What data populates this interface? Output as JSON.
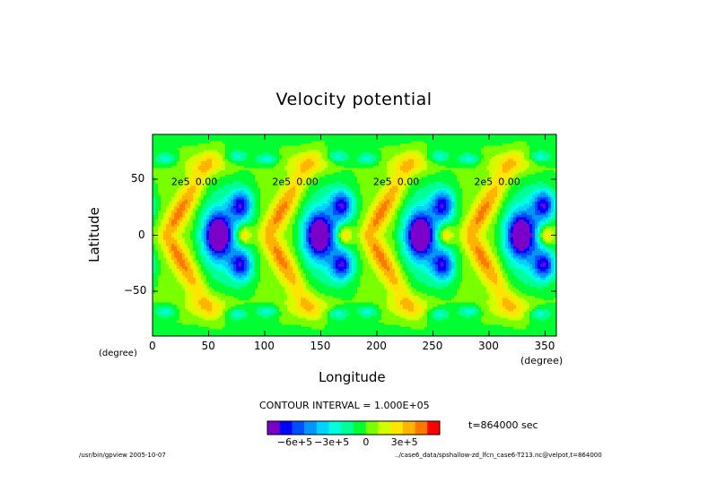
{
  "chart_data": {
    "type": "heatmap",
    "title": "Velocity potential",
    "xlabel": "Longitude",
    "ylabel": "Latitude",
    "x_unit_left": "(degree)",
    "x_unit_right": "(degree)",
    "xlim": [
      0,
      360
    ],
    "ylim": [
      -90,
      90
    ],
    "x_ticks": [
      0,
      50,
      100,
      150,
      200,
      250,
      300,
      350
    ],
    "y_ticks": [
      50,
      0,
      -50
    ],
    "x_tick_labels": [
      "0",
      "50",
      "100",
      "150",
      "200",
      "250",
      "300",
      "350"
    ],
    "y_tick_labels": [
      "50",
      "0",
      "−50"
    ],
    "contour_labels": [
      "2e5",
      "0.00",
      "2e5",
      "0.00",
      "2e5",
      "0.00",
      "2e5",
      "0.00"
    ],
    "contour_interval_text": "CONTOUR INTERVAL = 1.000E+05",
    "colorbar": {
      "levels": [
        -7,
        -6,
        -5,
        -4,
        -3,
        -2,
        -1,
        0,
        1,
        2,
        3,
        4,
        5
      ],
      "tick_labels": [
        "−6e+5",
        "−3e+5",
        "0",
        "3e+5"
      ],
      "colors": [
        "#7b00c8",
        "#0000ff",
        "#0050ff",
        "#0096ff",
        "#00d2ff",
        "#00ffdc",
        "#00ff96",
        "#00ff32",
        "#78ff00",
        "#d2ff00",
        "#ffe600",
        "#ffb400",
        "#ff7800",
        "#ff0000"
      ]
    },
    "value_range": [
      -7.5,
      4.5
    ],
    "period_degrees": 90
  },
  "time_label": "t=864000 sec",
  "footer_left": "/usr/bin/gpview  2005-10-07",
  "footer_right": "../case6_data/spshallow-zd_lfcn_case6-T213.nc@velpot,t=864000"
}
